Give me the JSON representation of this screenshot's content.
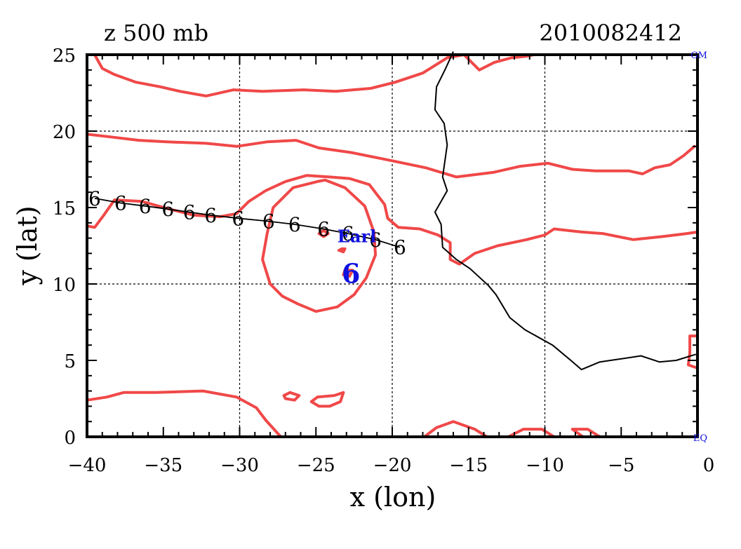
{
  "header": {
    "field_label": "z 500 mb",
    "datetime": "2010082412"
  },
  "axes": {
    "xlabel": "x (lon)",
    "ylabel": "y (lat)",
    "xlim": [
      -40,
      0
    ],
    "ylim": [
      0,
      25
    ],
    "x_ticks": [
      -40,
      -35,
      -30,
      -25,
      -20,
      -15,
      -10,
      -5,
      0
    ],
    "y_ticks": [
      0,
      5,
      10,
      15,
      20,
      25
    ],
    "x_tick_labels": [
      "−40",
      "−35",
      "−30",
      "−25",
      "−20",
      "−15",
      "−10",
      "−5",
      "0"
    ],
    "y_tick_labels": [
      "0",
      "5",
      "10",
      "15",
      "20",
      "25"
    ],
    "grid_x": [
      -30,
      -20,
      -10
    ],
    "grid_y": [
      10,
      20
    ],
    "grid": true
  },
  "corner_labels": {
    "top_right": "GM",
    "bottom_right": "EQ"
  },
  "storm": {
    "name": "Earl",
    "symbol": "6",
    "current_position": [
      -22.7,
      10.7
    ],
    "label_position": [
      -23.6,
      13.1
    ],
    "color": "#1010e0"
  },
  "colors": {
    "contour": "#f04848",
    "coast": "#000000",
    "track": "#000000",
    "storm": "#1010e0",
    "grid": "#000000"
  },
  "chart_data": {
    "type": "map",
    "projection": "lat-lon",
    "track": {
      "points": [
        [
          -39.5,
          15.6
        ],
        [
          -37.8,
          15.3
        ],
        [
          -36.2,
          15.1
        ],
        [
          -34.7,
          14.9
        ],
        [
          -33.3,
          14.7
        ],
        [
          -31.9,
          14.5
        ],
        [
          -30.1,
          14.3
        ],
        [
          -28.1,
          14.1
        ],
        [
          -26.4,
          13.9
        ],
        [
          -24.5,
          13.6
        ],
        [
          -22.9,
          13.3
        ],
        [
          -21.1,
          12.9
        ],
        [
          -19.5,
          12.4
        ]
      ],
      "symbol": "6"
    },
    "coastline": [
      [
        [
          -16.0,
          25.2
        ],
        [
          -16.5,
          24.1
        ],
        [
          -17.1,
          22.9
        ],
        [
          -17.2,
          21.4
        ],
        [
          -16.6,
          20.5
        ],
        [
          -16.4,
          19.1
        ],
        [
          -16.7,
          17.0
        ],
        [
          -16.4,
          16.1
        ],
        [
          -17.2,
          14.7
        ],
        [
          -16.8,
          13.9
        ],
        [
          -16.7,
          12.4
        ],
        [
          -15.8,
          11.6
        ],
        [
          -14.9,
          11.0
        ],
        [
          -13.7,
          9.9
        ],
        [
          -13.2,
          9.3
        ],
        [
          -12.3,
          7.8
        ],
        [
          -11.3,
          7.0
        ],
        [
          -9.5,
          6.0
        ],
        [
          -8.3,
          5.0
        ],
        [
          -7.6,
          4.4
        ],
        [
          -6.4,
          4.9
        ],
        [
          -5.0,
          5.1
        ],
        [
          -3.7,
          5.3
        ],
        [
          -2.5,
          4.9
        ],
        [
          -1.4,
          5.0
        ],
        [
          -0.1,
          5.4
        ]
      ]
    ],
    "contours": [
      [
        [
          -39.5,
          25.0
        ],
        [
          -39.0,
          24.1
        ],
        [
          -38.2,
          23.7
        ],
        [
          -36.8,
          23.2
        ],
        [
          -35.2,
          22.9
        ],
        [
          -33.9,
          22.6
        ],
        [
          -32.2,
          22.3
        ],
        [
          -30.4,
          22.7
        ],
        [
          -28.5,
          22.6
        ],
        [
          -25.8,
          22.7
        ],
        [
          -23.7,
          22.6
        ],
        [
          -21.4,
          22.8
        ],
        [
          -19.8,
          23.2
        ],
        [
          -18.0,
          23.8
        ],
        [
          -16.4,
          24.8
        ],
        [
          -15.3,
          25.0
        ],
        [
          -14.3,
          24.0
        ],
        [
          -13.3,
          24.5
        ],
        [
          -12.2,
          24.8
        ],
        [
          -11.2,
          24.9
        ],
        [
          -10.7,
          25.0
        ]
      ],
      [
        [
          -40.0,
          19.8
        ],
        [
          -38.3,
          19.6
        ],
        [
          -36.6,
          19.4
        ],
        [
          -34.8,
          19.3
        ],
        [
          -32.2,
          19.2
        ],
        [
          -30.2,
          19.0
        ],
        [
          -28.2,
          19.3
        ],
        [
          -26.3,
          19.4
        ],
        [
          -24.8,
          18.9
        ],
        [
          -22.7,
          18.6
        ],
        [
          -20.2,
          18.1
        ],
        [
          -17.8,
          17.6
        ],
        [
          -15.8,
          17.0
        ],
        [
          -13.4,
          17.3
        ],
        [
          -11.6,
          17.7
        ],
        [
          -9.8,
          17.9
        ],
        [
          -8.2,
          17.5
        ],
        [
          -6.7,
          17.4
        ],
        [
          -4.5,
          17.4
        ],
        [
          -3.6,
          17.2
        ],
        [
          -2.8,
          17.6
        ],
        [
          -1.8,
          17.8
        ],
        [
          -0.9,
          18.4
        ],
        [
          -0.2,
          19.0
        ]
      ],
      [
        [
          -40.0,
          13.8
        ],
        [
          -39.5,
          13.7
        ],
        [
          -38.9,
          14.5
        ],
        [
          -38.2,
          15.5
        ],
        [
          -36.4,
          15.4
        ],
        [
          -34.6,
          14.9
        ],
        [
          -33.0,
          14.5
        ],
        [
          -31.3,
          14.4
        ],
        [
          -30.2,
          14.6
        ],
        [
          -29.4,
          15.4
        ],
        [
          -28.3,
          16.1
        ],
        [
          -27.0,
          16.7
        ],
        [
          -25.6,
          17.1
        ],
        [
          -24.1,
          17.0
        ],
        [
          -22.8,
          16.9
        ],
        [
          -21.5,
          16.5
        ],
        [
          -20.5,
          15.2
        ],
        [
          -20.3,
          14.3
        ],
        [
          -19.6,
          13.7
        ],
        [
          -18.2,
          13.6
        ],
        [
          -17.0,
          13.2
        ],
        [
          -16.2,
          12.7
        ],
        [
          -16.2,
          11.6
        ],
        [
          -15.6,
          11.3
        ],
        [
          -14.6,
          12.0
        ],
        [
          -13.1,
          12.5
        ],
        [
          -11.2,
          12.9
        ],
        [
          -10.0,
          13.2
        ],
        [
          -9.4,
          13.6
        ],
        [
          -7.6,
          13.4
        ],
        [
          -6.2,
          13.3
        ],
        [
          -4.2,
          12.9
        ],
        [
          -2.3,
          13.1
        ],
        [
          -0.7,
          13.3
        ],
        [
          0.0,
          13.4
        ]
      ],
      [
        [
          -24.9,
          16.7
        ],
        [
          -26.5,
          16.3
        ],
        [
          -27.8,
          15.0
        ],
        [
          -28.2,
          13.3
        ],
        [
          -28.5,
          11.6
        ],
        [
          -28.0,
          10.0
        ],
        [
          -27.2,
          9.2
        ],
        [
          -26.2,
          8.7
        ],
        [
          -25.0,
          8.2
        ],
        [
          -23.6,
          8.5
        ],
        [
          -22.5,
          9.3
        ],
        [
          -21.7,
          10.4
        ],
        [
          -21.1,
          11.9
        ],
        [
          -21.2,
          13.4
        ],
        [
          -21.8,
          15.1
        ],
        [
          -23.1,
          16.3
        ],
        [
          -24.4,
          16.8
        ],
        [
          -24.9,
          16.7
        ]
      ],
      [
        [
          -24.5,
          13.5
        ],
        [
          -24.2,
          13.3
        ],
        [
          -24.5,
          13.1
        ],
        [
          -24.8,
          13.3
        ],
        [
          -24.5,
          13.5
        ]
      ],
      [
        [
          -23.3,
          12.3
        ],
        [
          -23.1,
          12.3
        ],
        [
          -23.2,
          12.1
        ],
        [
          -23.5,
          12.2
        ],
        [
          -23.3,
          12.3
        ]
      ],
      [
        [
          -23.1,
          10.9
        ],
        [
          -22.6,
          10.9
        ],
        [
          -22.8,
          10.5
        ],
        [
          -23.2,
          10.6
        ],
        [
          -23.1,
          10.9
        ]
      ],
      [
        [
          -40.0,
          2.4
        ],
        [
          -38.7,
          2.6
        ],
        [
          -37.6,
          2.9
        ],
        [
          -35.5,
          2.9
        ],
        [
          -32.4,
          3.0
        ],
        [
          -30.2,
          2.6
        ],
        [
          -28.9,
          1.9
        ],
        [
          -28.3,
          1.1
        ],
        [
          -27.3,
          0.0
        ]
      ],
      [
        [
          -26.7,
          2.9
        ],
        [
          -26.1,
          2.7
        ],
        [
          -26.4,
          2.4
        ],
        [
          -27.0,
          2.5
        ],
        [
          -27.1,
          2.7
        ],
        [
          -26.7,
          2.9
        ]
      ],
      [
        [
          -24.9,
          2.6
        ],
        [
          -23.8,
          2.7
        ],
        [
          -23.2,
          2.9
        ],
        [
          -23.4,
          2.3
        ],
        [
          -24.1,
          2.0
        ],
        [
          -24.8,
          2.0
        ],
        [
          -25.3,
          2.3
        ],
        [
          -24.9,
          2.6
        ]
      ],
      [
        [
          -17.9,
          0.0
        ],
        [
          -17.1,
          0.6
        ],
        [
          -16.0,
          1.0
        ],
        [
          -14.6,
          0.5
        ],
        [
          -13.8,
          0.0
        ]
      ],
      [
        [
          -12.4,
          0.0
        ],
        [
          -11.4,
          0.5
        ],
        [
          -10.2,
          0.5
        ],
        [
          -9.4,
          0.0
        ]
      ],
      [
        [
          -7.5,
          0.0
        ],
        [
          -8.2,
          0.5
        ],
        [
          -7.2,
          0.5
        ],
        [
          -6.4,
          0.0
        ]
      ],
      [
        [
          0.0,
          6.6
        ],
        [
          -0.5,
          6.6
        ],
        [
          -0.5,
          5.5
        ],
        [
          -0.6,
          4.7
        ],
        [
          0.0,
          4.5
        ]
      ]
    ]
  }
}
